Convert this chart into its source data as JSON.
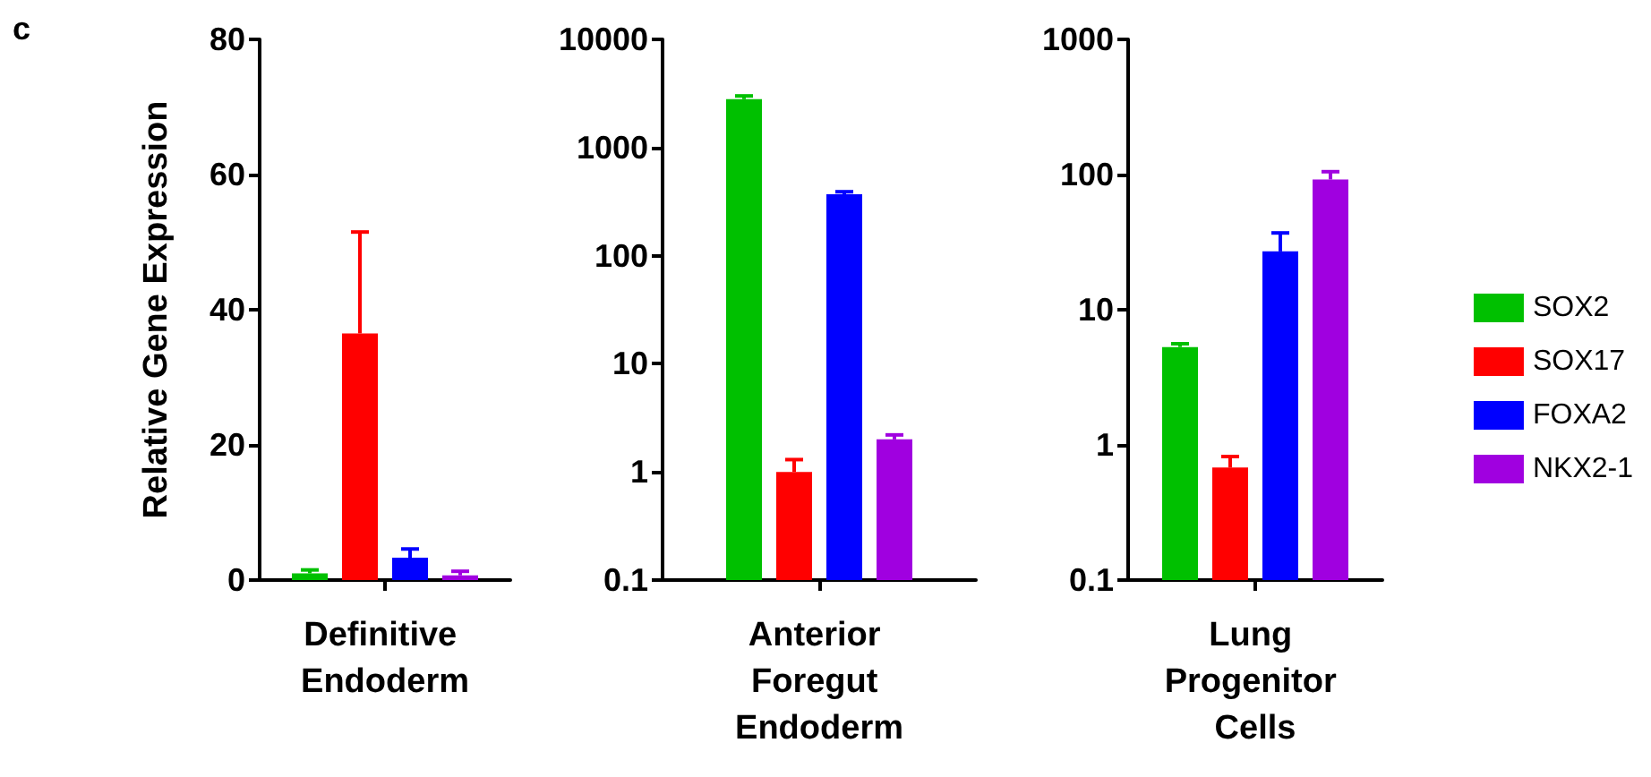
{
  "chart_data": [
    {
      "type": "bar",
      "ylabel": "Relative Gene Expression",
      "annotations": [
        "c"
      ],
      "categories": [
        "Definitive Endoderm"
      ],
      "ylim": [
        0,
        80
      ],
      "yticks": [
        0,
        20,
        40,
        60,
        80
      ],
      "grid": false,
      "legend": false,
      "series": [
        {
          "color": "#00c000",
          "values": [
            1.0
          ],
          "errors": [
            [
              1.0,
              1.5
            ]
          ]
        },
        {
          "color": "#ff0000",
          "values": [
            36.5
          ],
          "errors": [
            [
              36.5,
              51.5
            ]
          ]
        },
        {
          "color": "#0000ff",
          "values": [
            3.3
          ],
          "errors": [
            [
              3.3,
              4.6
            ]
          ]
        },
        {
          "color": "#a000e0",
          "values": [
            0.7
          ],
          "errors": [
            [
              0.7,
              1.3
            ]
          ]
        }
      ]
    },
    {
      "type": "bar",
      "categories": [
        "Anterior Foregut Endoderm"
      ],
      "log": true,
      "ylim": [
        0.1,
        10000
      ],
      "yticks": [
        0.1,
        1,
        10,
        100,
        1000,
        10000
      ],
      "grid": false,
      "legend": false,
      "series": [
        {
          "color": "#00c000",
          "values": [
            2800
          ],
          "errors": [
            [
              2800,
              3000
            ]
          ]
        },
        {
          "color": "#ff0000",
          "values": [
            1.0
          ],
          "errors": [
            [
              1.0,
              1.3
            ]
          ]
        },
        {
          "color": "#0000ff",
          "values": [
            370
          ],
          "errors": [
            [
              370,
              390
            ]
          ]
        },
        {
          "color": "#a000e0",
          "values": [
            2.0
          ],
          "errors": [
            [
              2.0,
              2.2
            ]
          ]
        }
      ]
    },
    {
      "type": "bar",
      "categories": [
        "Lung Progenitor Cells"
      ],
      "log": true,
      "ylim": [
        0.1,
        1000
      ],
      "yticks": [
        0.1,
        1,
        10,
        100,
        1000
      ],
      "grid": false,
      "legend": "right",
      "series": [
        {
          "name": "SOX2",
          "color": "#00c000",
          "values": [
            5.3
          ],
          "errors": [
            [
              5.3,
              5.6
            ]
          ]
        },
        {
          "name": "SOX17",
          "color": "#ff0000",
          "values": [
            0.68
          ],
          "errors": [
            [
              0.68,
              0.82
            ]
          ]
        },
        {
          "name": "FOXA2",
          "color": "#0000ff",
          "values": [
            27
          ],
          "errors": [
            [
              27,
              37
            ]
          ]
        },
        {
          "name": "NKX2-1",
          "color": "#a000e0",
          "values": [
            92
          ],
          "errors": [
            [
              92,
              105
            ]
          ]
        }
      ]
    }
  ]
}
